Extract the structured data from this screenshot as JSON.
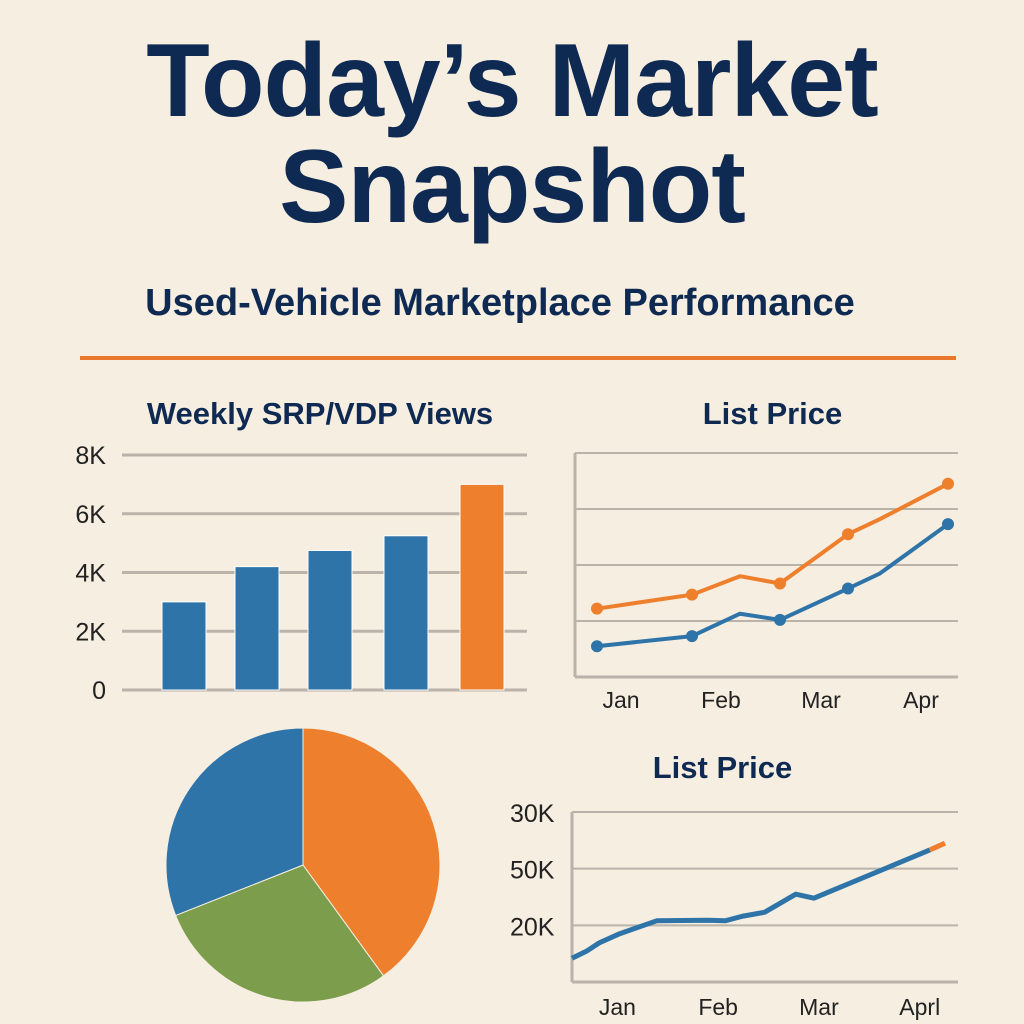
{
  "header": {
    "title_line1": "Today’s Market",
    "title_line2": "Snapshot",
    "subtitle": "Used-Vehicle Marketplace Performance"
  },
  "colors": {
    "navy": "#0f2a52",
    "blue": "#2e74a8",
    "orange": "#ee7f2d",
    "green": "#7c9d4b",
    "grid": "#b9b3aa",
    "background": "#f6eee1"
  },
  "chart_data": [
    {
      "type": "bar",
      "title": "Weekly SRP/VDP Views",
      "categories": [
        "",
        "",
        "",
        "",
        ""
      ],
      "values": [
        3000,
        4200,
        4750,
        5250,
        7000
      ],
      "bar_colors": [
        "#2e74a8",
        "#2e74a8",
        "#2e74a8",
        "#2e74a8",
        "#ee7f2d"
      ],
      "ylim": [
        0,
        8000
      ],
      "yticks": [
        {
          "v": 0,
          "label": "0"
        },
        {
          "v": 2000,
          "label": "2K"
        },
        {
          "v": 4000,
          "label": "4K"
        },
        {
          "v": 6000,
          "label": "6K"
        },
        {
          "v": 8000,
          "label": "8K"
        }
      ],
      "grid": true
    },
    {
      "type": "line",
      "title": "List Price",
      "xticks": [
        {
          "v": 0,
          "label": "Jan"
        },
        {
          "v": 1,
          "label": "Feb"
        },
        {
          "v": 2,
          "label": "Mar"
        },
        {
          "v": 3,
          "label": "Apr"
        }
      ],
      "xlim": [
        -0.46,
        3.37
      ],
      "ylim": [
        0,
        4
      ],
      "grid": true,
      "markers": true,
      "series": [
        {
          "color": "#ee7f2d",
          "x": [
            -0.24,
            0.71,
            1.19,
            1.59,
            2.27,
            2.59,
            3.27
          ],
          "y": [
            1.22,
            1.47,
            1.8,
            1.67,
            2.55,
            2.82,
            3.45
          ],
          "marker_idx": [
            0,
            1,
            3,
            4,
            6
          ]
        },
        {
          "color": "#2e74a8",
          "x": [
            -0.24,
            0.71,
            1.19,
            1.59,
            2.27,
            2.59,
            3.27
          ],
          "y": [
            0.55,
            0.73,
            1.13,
            1.02,
            1.58,
            1.85,
            2.73
          ],
          "marker_idx": [
            0,
            1,
            3,
            4,
            6
          ]
        }
      ]
    },
    {
      "type": "pie",
      "slices": [
        {
          "value": 40,
          "color": "#ee7f2d"
        },
        {
          "value": 29,
          "color": "#7c9d4b"
        },
        {
          "value": 31,
          "color": "#2e74a8"
        }
      ]
    },
    {
      "type": "line",
      "title": "List Price",
      "xticks": [
        {
          "v": 0,
          "label": "Jan"
        },
        {
          "v": 1,
          "label": "Feb"
        },
        {
          "v": 2,
          "label": "Mar"
        },
        {
          "v": 3,
          "label": "Aprl"
        }
      ],
      "xlim": [
        -0.45,
        3.3
      ],
      "ylim": [
        0,
        3
      ],
      "yticks": [
        {
          "v": 1,
          "label": "20K"
        },
        {
          "v": 2,
          "label": "50K"
        },
        {
          "v": 3,
          "label": "30K"
        }
      ],
      "grid": true,
      "series": [
        {
          "color": "#2e74a8",
          "x": [
            -0.45,
            -0.3,
            -0.18,
            0.02,
            0.39,
            0.9,
            1.07,
            1.24,
            1.46,
            1.77,
            1.95,
            3.1
          ],
          "y": [
            0.42,
            0.55,
            0.69,
            0.85,
            1.08,
            1.09,
            1.08,
            1.16,
            1.23,
            1.55,
            1.48,
            2.33
          ]
        },
        {
          "color": "#ee7f2d",
          "x": [
            3.1,
            3.25
          ],
          "y": [
            2.33,
            2.45
          ]
        }
      ]
    }
  ]
}
